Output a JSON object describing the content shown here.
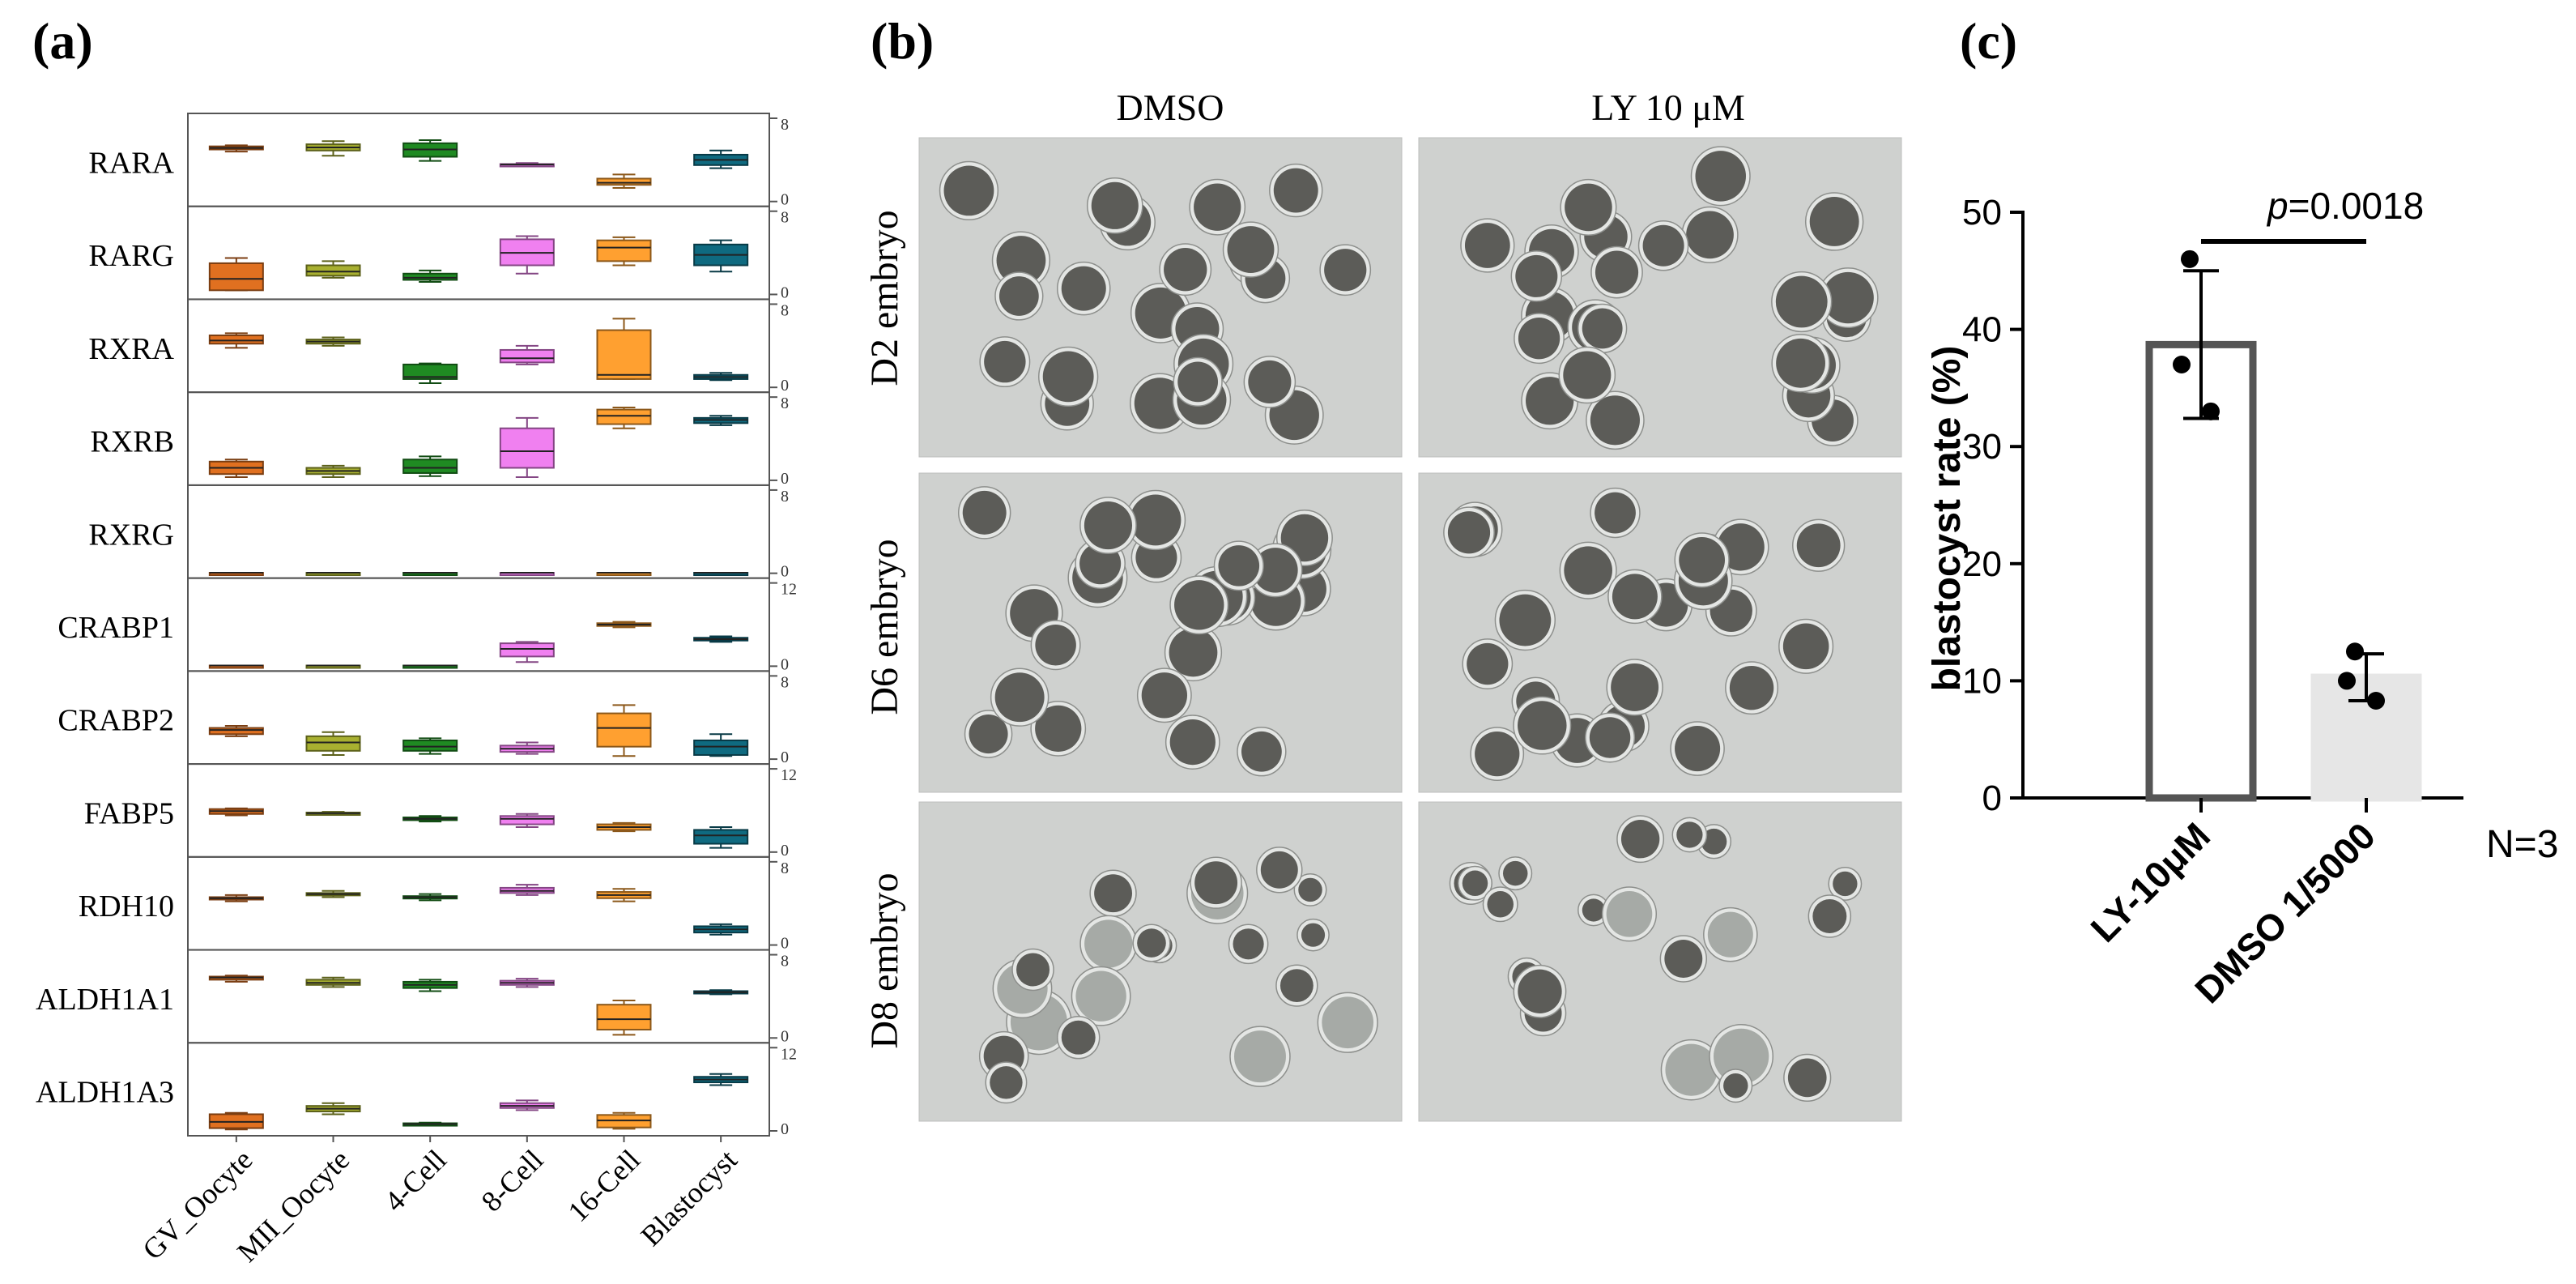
{
  "panels": {
    "a": {
      "label": "(a)",
      "genes": [
        {
          "name": "RARA",
          "axis_max": "8",
          "axis_min": "0",
          "scale": 8
        },
        {
          "name": "RARG",
          "axis_max": "8",
          "axis_min": "0",
          "scale": 8
        },
        {
          "name": "RXRA",
          "axis_max": "8",
          "axis_min": "0",
          "scale": 8
        },
        {
          "name": "RXRB",
          "axis_max": "8",
          "axis_min": "0",
          "scale": 8
        },
        {
          "name": "RXRG",
          "axis_max": "8",
          "axis_min": "0",
          "scale": 8
        },
        {
          "name": "CRABP1",
          "axis_max": "12",
          "axis_min": "0",
          "scale": 12
        },
        {
          "name": "CRABP2",
          "axis_max": "8",
          "axis_min": "0",
          "scale": 8
        },
        {
          "name": "FABP5",
          "axis_max": "12",
          "axis_min": "0",
          "scale": 12
        },
        {
          "name": "RDH10",
          "axis_max": "8",
          "axis_min": "0",
          "scale": 8
        },
        {
          "name": "ALDH1A1",
          "axis_max": "8",
          "axis_min": "0",
          "scale": 8
        },
        {
          "name": "ALDH1A3",
          "axis_max": "12",
          "axis_min": "0",
          "scale": 12
        }
      ],
      "stages": [
        "GV_Oocyte",
        "MII_Oocyte",
        "4-Cell",
        "8-Cell",
        "16-Cell",
        "Blastocyst"
      ],
      "stage_colors": [
        "#e07020",
        "#a8b030",
        "#1f8a22",
        "#f080f0",
        "#ffa030",
        "#0f6a80"
      ]
    },
    "b": {
      "label": "(b)",
      "columns": [
        "DMSO",
        "LY 10 μM"
      ],
      "rows": [
        "D2 embryo",
        "D6 embryo",
        "D8 embryo"
      ]
    },
    "c": {
      "label": "(c)",
      "n_label": "N=3",
      "p_label_italic": "p",
      "p_label_value": "=0.0018"
    }
  },
  "chart_data": [
    {
      "type": "box",
      "panel": "a",
      "categories": [
        "GV_Oocyte",
        "MII_Oocyte",
        "4-Cell",
        "8-Cell",
        "16-Cell",
        "Blastocyst"
      ],
      "series": [
        {
          "name": "RARA",
          "boxes": [
            [
              4.8,
              5.0,
              5.15,
              5.3,
              5.4
            ],
            [
              4.4,
              4.9,
              5.2,
              5.5,
              5.8
            ],
            [
              3.9,
              4.3,
              5.0,
              5.6,
              5.9
            ],
            [
              3.4,
              3.5,
              3.55,
              3.6,
              3.7
            ],
            [
              1.3,
              1.6,
              1.8,
              2.2,
              2.6
            ],
            [
              3.2,
              3.5,
              4.0,
              4.5,
              4.9
            ]
          ]
        },
        {
          "name": "RARG",
          "boxes": [
            [
              0.4,
              0.4,
              1.5,
              3.0,
              3.5
            ],
            [
              1.6,
              1.8,
              2.2,
              2.8,
              3.2
            ],
            [
              1.2,
              1.4,
              1.6,
              2.0,
              2.3
            ],
            [
              2.0,
              2.8,
              4.0,
              5.3,
              5.6
            ],
            [
              2.8,
              3.2,
              4.5,
              5.2,
              5.5
            ],
            [
              2.2,
              2.8,
              3.8,
              4.8,
              5.2
            ]
          ]
        },
        {
          "name": "RXRA",
          "boxes": [
            [
              3.8,
              4.2,
              4.5,
              5.0,
              5.2
            ],
            [
              4.0,
              4.2,
              4.4,
              4.6,
              4.8
            ],
            [
              0.4,
              0.8,
              1.0,
              2.2,
              2.3
            ],
            [
              2.2,
              2.4,
              2.8,
              3.6,
              4.0
            ],
            [
              0.8,
              0.8,
              1.2,
              5.5,
              6.6
            ],
            [
              0.7,
              0.8,
              1.0,
              1.2,
              1.4
            ]
          ]
        },
        {
          "name": "RXRB",
          "boxes": [
            [
              0.3,
              0.6,
              1.2,
              1.8,
              2.0
            ],
            [
              0.3,
              0.6,
              0.9,
              1.2,
              1.4
            ],
            [
              0.4,
              0.7,
              1.2,
              2.0,
              2.3
            ],
            [
              0.3,
              1.2,
              2.8,
              5.0,
              6.0
            ],
            [
              5.0,
              5.4,
              6.2,
              6.8,
              7.0
            ],
            [
              5.3,
              5.5,
              5.8,
              6.0,
              6.2
            ]
          ]
        },
        {
          "name": "RXRG",
          "boxes": [
            [
              0.05,
              0.05,
              0.05,
              0.05,
              0.05
            ],
            [
              0.05,
              0.05,
              0.05,
              0.05,
              0.05
            ],
            [
              0.05,
              0.05,
              0.05,
              0.05,
              0.05
            ],
            [
              0.05,
              0.05,
              0.05,
              0.05,
              0.05
            ],
            [
              0.05,
              0.05,
              0.05,
              0.05,
              0.05
            ],
            [
              0.05,
              0.05,
              0.05,
              0.05,
              0.05
            ]
          ]
        },
        {
          "name": "CRABP1",
          "boxes": [
            [
              0.1,
              0.1,
              0.1,
              0.1,
              0.1
            ],
            [
              0.1,
              0.1,
              0.1,
              0.1,
              0.1
            ],
            [
              0.1,
              0.1,
              0.1,
              0.1,
              0.1
            ],
            [
              0.6,
              1.4,
              2.5,
              3.3,
              3.5
            ],
            [
              5.6,
              5.8,
              6.0,
              6.2,
              6.4
            ],
            [
              3.5,
              3.7,
              3.9,
              4.1,
              4.3
            ]
          ]
        },
        {
          "name": "CRABP2",
          "boxes": [
            [
              2.2,
              2.4,
              2.8,
              3.0,
              3.2
            ],
            [
              0.4,
              0.8,
              1.6,
              2.2,
              2.6
            ],
            [
              0.5,
              0.8,
              1.2,
              1.8,
              2.0
            ],
            [
              0.5,
              0.7,
              1.0,
              1.3,
              1.6
            ],
            [
              0.3,
              1.2,
              3.0,
              4.4,
              5.2
            ],
            [
              0.3,
              0.4,
              1.2,
              1.8,
              2.4
            ]
          ]
        },
        {
          "name": "FABP5",
          "boxes": [
            [
              5.3,
              5.5,
              5.9,
              6.2,
              6.3
            ],
            [
              5.4,
              5.5,
              5.6,
              5.7,
              5.8
            ],
            [
              4.4,
              4.6,
              4.8,
              5.0,
              5.2
            ],
            [
              3.6,
              4.0,
              4.8,
              5.2,
              5.5
            ],
            [
              3.0,
              3.2,
              3.6,
              4.0,
              4.2
            ],
            [
              0.6,
              1.2,
              2.4,
              3.2,
              3.6
            ]
          ]
        },
        {
          "name": "RDH10",
          "boxes": [
            [
              4.2,
              4.4,
              4.5,
              4.6,
              4.8
            ],
            [
              4.6,
              4.8,
              4.9,
              5.0,
              5.2
            ],
            [
              4.3,
              4.5,
              4.6,
              4.7,
              4.9
            ],
            [
              4.8,
              5.0,
              5.2,
              5.5,
              5.8
            ],
            [
              4.2,
              4.5,
              4.8,
              5.1,
              5.4
            ],
            [
              1.0,
              1.2,
              1.5,
              1.8,
              2.0
            ]
          ]
        },
        {
          "name": "ALDH1A1",
          "boxes": [
            [
              5.4,
              5.6,
              5.8,
              5.9,
              6.0
            ],
            [
              4.9,
              5.1,
              5.3,
              5.6,
              5.8
            ],
            [
              4.5,
              4.8,
              5.1,
              5.4,
              5.6
            ],
            [
              4.9,
              5.1,
              5.3,
              5.5,
              5.7
            ],
            [
              0.3,
              0.8,
              1.8,
              3.2,
              3.6
            ],
            [
              4.2,
              4.3,
              4.4,
              4.5,
              4.6
            ]
          ]
        },
        {
          "name": "ALDH1A3",
          "boxes": [
            [
              0.2,
              0.4,
              1.3,
              2.4,
              2.6
            ],
            [
              2.4,
              2.8,
              3.2,
              3.6,
              4.0
            ],
            [
              0.8,
              0.9,
              1.0,
              1.1,
              1.2
            ],
            [
              3.0,
              3.3,
              3.6,
              4.0,
              4.4
            ],
            [
              0.3,
              0.5,
              1.5,
              2.3,
              2.6
            ],
            [
              6.6,
              7.0,
              7.4,
              7.8,
              8.2
            ]
          ]
        }
      ]
    },
    {
      "type": "bar",
      "panel": "c",
      "categories": [
        "LY-10μM",
        "DMSO 1/5000"
      ],
      "values": [
        38.7,
        10.3
      ],
      "error_sd": [
        6.3,
        2.0
      ],
      "points": [
        [
          46,
          37,
          33
        ],
        [
          12.5,
          10.0,
          8.3
        ]
      ],
      "ylabel": "blastocyst rate (%)",
      "ylim": [
        0,
        50
      ],
      "yticks": [
        "0",
        "10",
        "20",
        "30",
        "40",
        "50"
      ],
      "grid": false
    }
  ]
}
